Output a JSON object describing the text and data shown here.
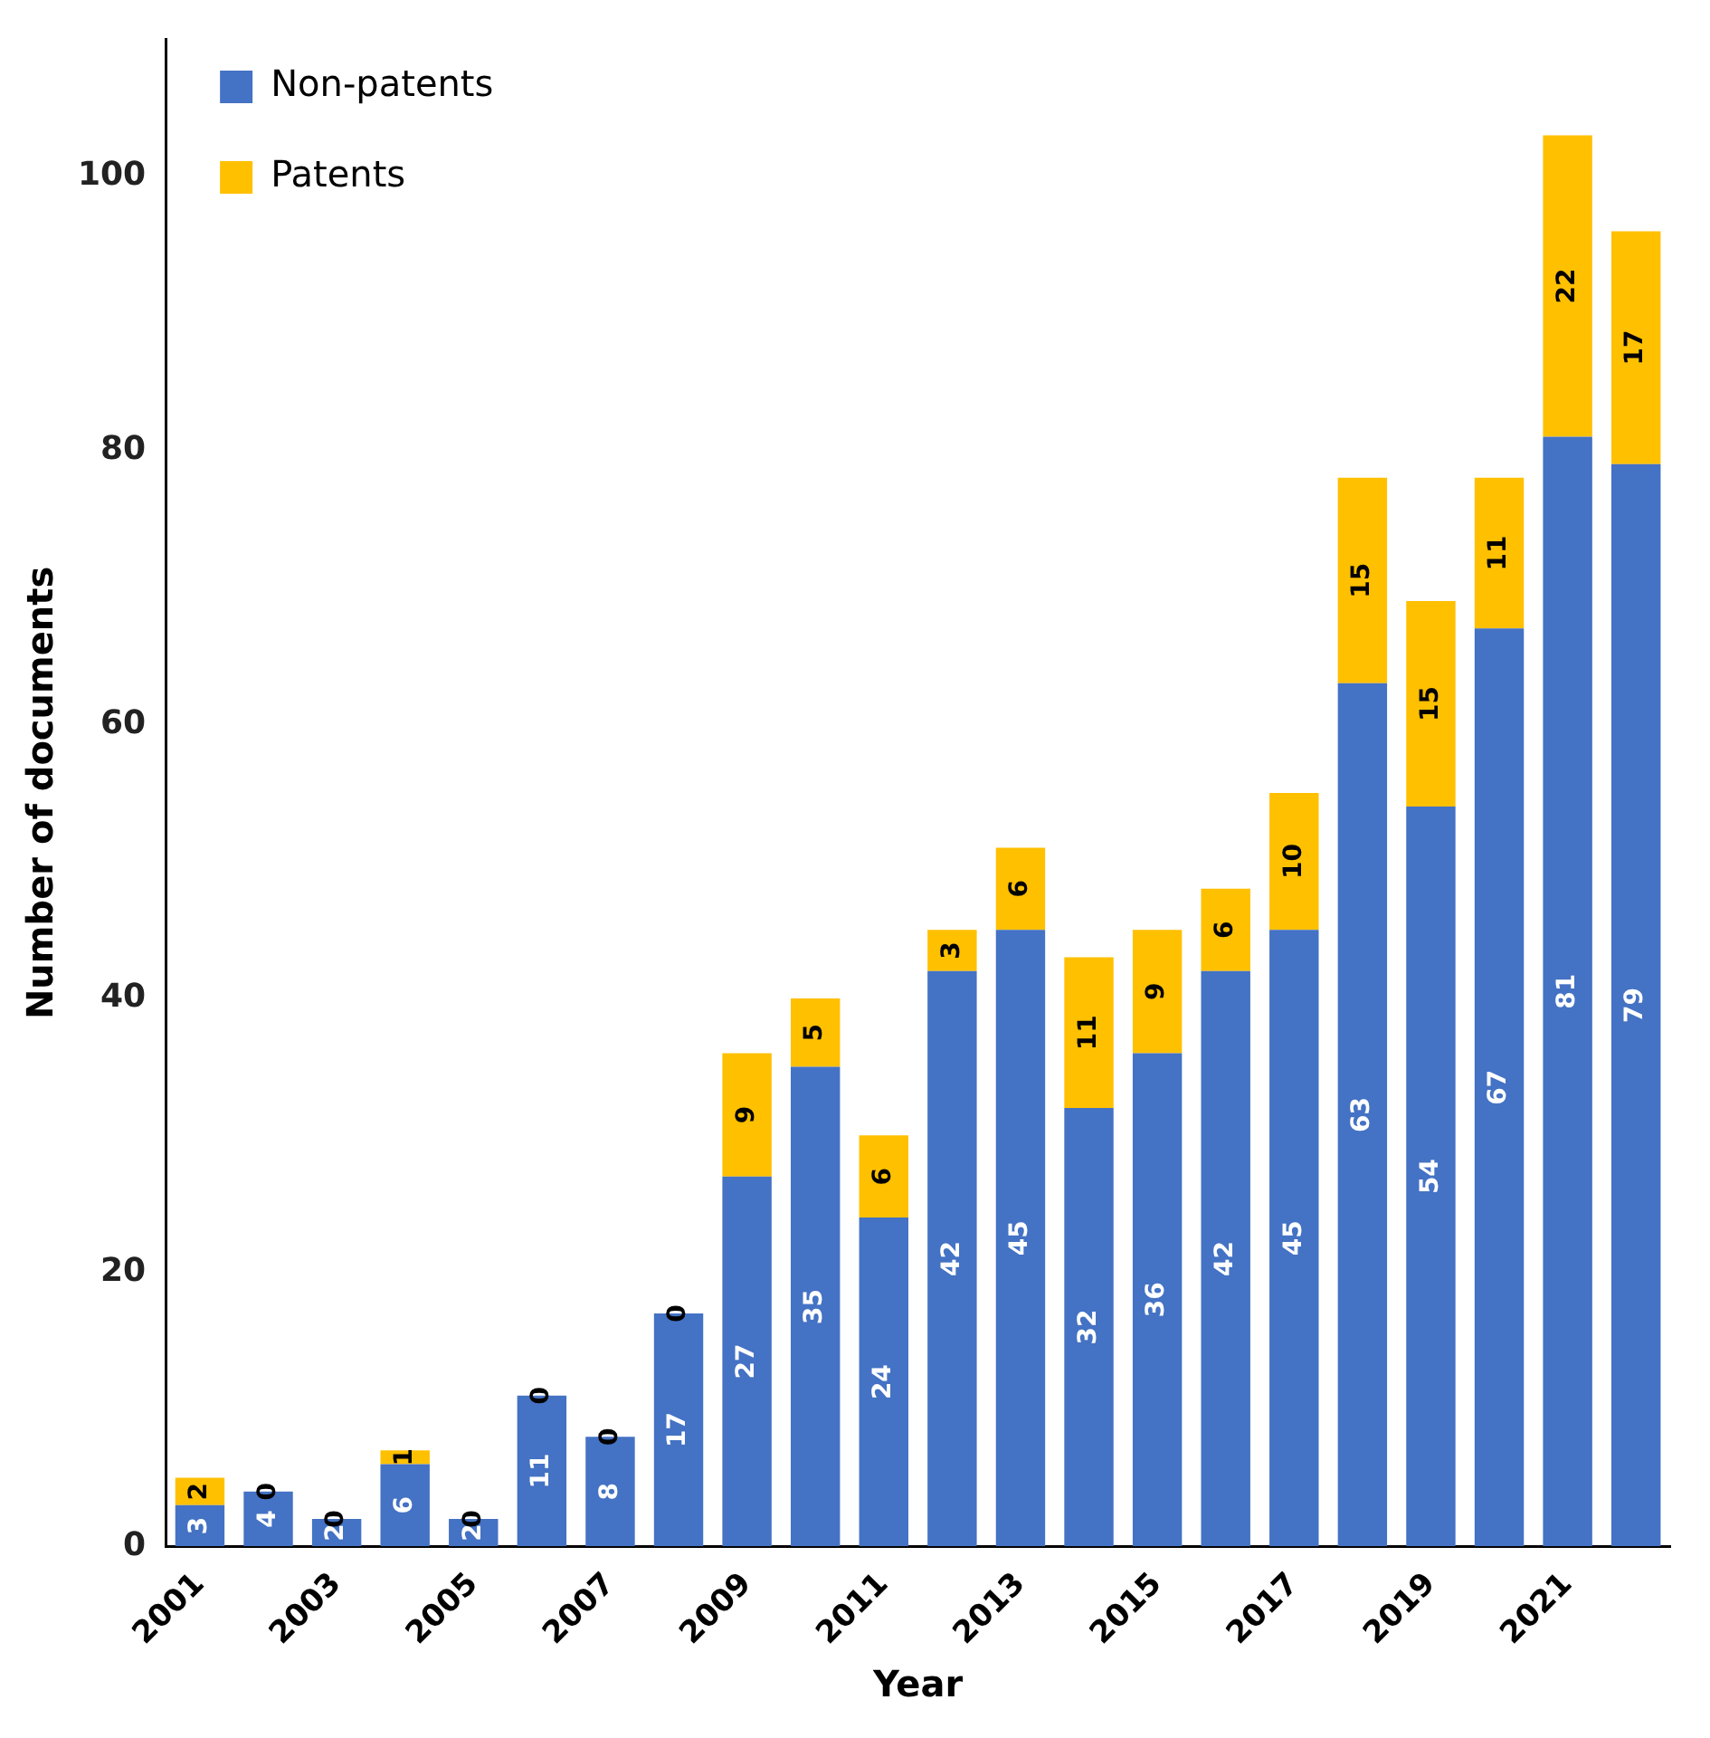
{
  "chart_data": {
    "type": "bar",
    "stacked": true,
    "xlabel": "Year",
    "ylabel": "Number of documents",
    "categories": [
      "2001",
      null,
      "2003",
      null,
      "2005",
      null,
      "2007",
      null,
      "2009",
      null,
      "2011",
      null,
      "2013",
      null,
      "2015",
      null,
      "2017",
      null,
      "2019",
      null,
      "2021",
      null
    ],
    "series": [
      {
        "name": "Non-patents",
        "color": "#4472c4",
        "values": [
          3,
          4,
          2,
          6,
          2,
          11,
          8,
          17,
          27,
          35,
          24,
          42,
          45,
          32,
          36,
          42,
          45,
          63,
          54,
          67,
          81,
          79
        ]
      },
      {
        "name": "Patents",
        "color": "#ffc000",
        "values": [
          2,
          0,
          0,
          1,
          0,
          0,
          0,
          0,
          9,
          5,
          6,
          3,
          6,
          11,
          9,
          6,
          10,
          15,
          15,
          11,
          22,
          17
        ]
      }
    ],
    "ylim": [
      0,
      110
    ],
    "yticks": [
      0,
      20,
      40,
      60,
      80,
      100
    ],
    "grid": false,
    "legend": "top left",
    "data_labels": true
  }
}
